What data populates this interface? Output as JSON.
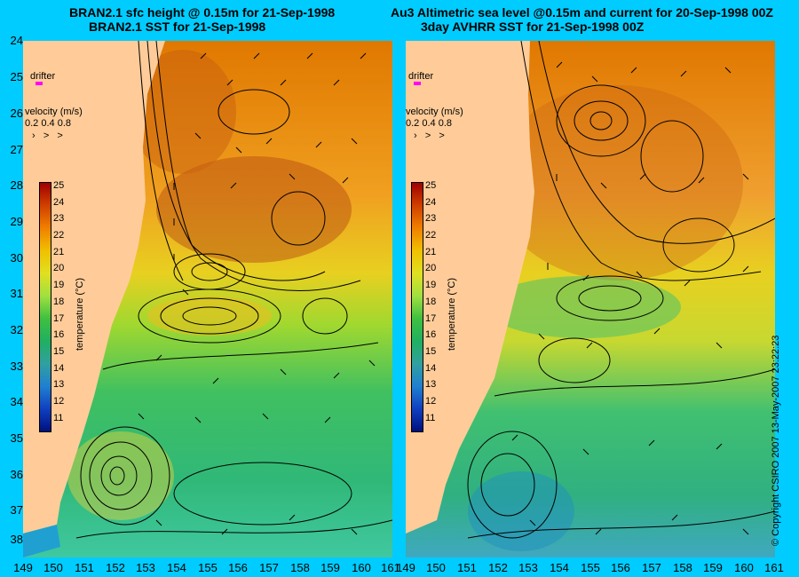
{
  "left_title": [
    "BRAN2.1 sfc height @ 0.15m for 21-Sep-1998",
    "BRAN2.1 SST for 21-Sep-1998"
  ],
  "right_title": [
    "Au3 Altimetric sea level  @0.15m and current for 20-Sep-1998 00Z",
    "3day AVHRR SST for 21-Sep-1998 00Z"
  ],
  "drifter_label": "drifter",
  "velocity_label": "velocity (m/s)",
  "velocity_ticks": [
    "0.2",
    "0.4",
    "0.8"
  ],
  "colorbar_label": "temperature (°C)",
  "colorbar_ticks": [
    "25",
    "24",
    "23",
    "22",
    "21",
    "20",
    "19",
    "18",
    "17",
    "16",
    "15",
    "14",
    "13",
    "12",
    "11"
  ],
  "y_ticks": [
    "24",
    "25",
    "26",
    "27",
    "28",
    "29",
    "30",
    "31",
    "32",
    "33",
    "34",
    "35",
    "36",
    "37",
    "38"
  ],
  "x_ticks": [
    "149",
    "150",
    "151",
    "152",
    "153",
    "154",
    "155",
    "156",
    "157",
    "158",
    "159",
    "160",
    "161"
  ],
  "copyright": "© Copyright CSIRO 2007 13-May-2007 23:22:23",
  "colors": {
    "background": "#00ccff",
    "land": "#ffcc99",
    "drifter": "#ff00ff"
  }
}
